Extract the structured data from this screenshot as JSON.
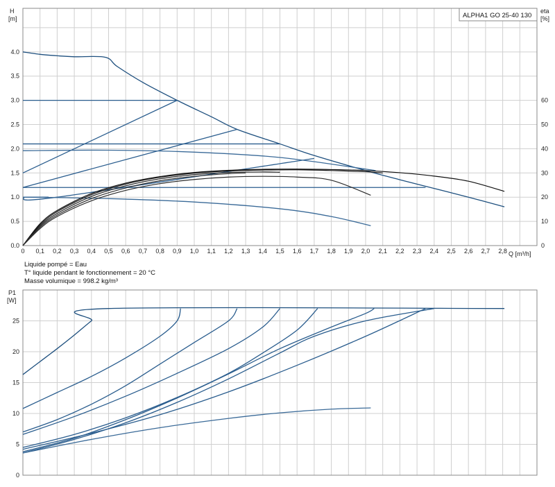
{
  "model_label": "ALPHA1 GO 25-40 130",
  "notes": [
    "Liquide pompé = Eau",
    "T° liquide pendant le fonctionnement = 20 °C",
    "Masse volumique = 998.2 kg/m³"
  ],
  "chart_data": [
    {
      "type": "line",
      "ylabel_line1": "H",
      "ylabel_line2": "[m]",
      "y2label_line1": "eta",
      "y2label_line2": "[%]",
      "xlabel": "Q [m³/h]",
      "xlim": [
        0,
        3.0
      ],
      "ylim": [
        0,
        4.9
      ],
      "y2lim": [
        0,
        98
      ],
      "grid": true,
      "x_ticks": [
        "0",
        "0,1",
        "0,2",
        "0,3",
        "0,4",
        "0,5",
        "0,6",
        "0,7",
        "0,8",
        "0,9",
        "1,0",
        "1,1",
        "1,2",
        "1,3",
        "1,4",
        "1,5",
        "1,6",
        "1,7",
        "1,8",
        "1,9",
        "2,0",
        "2,1",
        "2,2",
        "2,3",
        "2,4",
        "2,5",
        "2,6",
        "2,7",
        "2,8"
      ],
      "y_ticks": [
        "0.0",
        "0.5",
        "1.0",
        "1.5",
        "2.0",
        "2.5",
        "3.0",
        "3.5",
        "4.0"
      ],
      "y2_ticks": [
        "0",
        "10",
        "20",
        "30",
        "40",
        "50",
        "60"
      ],
      "head_series": [
        {
          "color": "#1d4f7e",
          "points": [
            [
              0,
              4.0
            ],
            [
              0.1,
              3.95
            ],
            [
              0.2,
              3.92
            ],
            [
              0.3,
              3.9
            ],
            [
              0.48,
              3.89
            ],
            [
              0.55,
              3.7
            ],
            [
              0.7,
              3.37
            ],
            [
              0.9,
              3.0
            ],
            [
              1.1,
              2.66
            ],
            [
              1.25,
              2.4
            ],
            [
              1.5,
              2.1
            ],
            [
              1.7,
              1.86
            ],
            [
              2.0,
              1.55
            ],
            [
              2.2,
              1.36
            ],
            [
              2.4,
              1.18
            ],
            [
              2.6,
              1.0
            ],
            [
              2.81,
              0.8
            ]
          ]
        },
        {
          "color": "#2a5d8e",
          "points": [
            [
              0,
              3.0
            ],
            [
              0.9,
              3.0
            ]
          ]
        },
        {
          "color": "#2a5d8e",
          "points": [
            [
              0,
              1.5
            ],
            [
              0.9,
              3.0
            ]
          ]
        },
        {
          "color": "#2a5d8e",
          "points": [
            [
              0,
              2.1
            ],
            [
              1.5,
              2.1
            ]
          ]
        },
        {
          "color": "#2a5d8e",
          "points": [
            [
              0,
              1.2
            ],
            [
              1.25,
              2.4
            ]
          ]
        },
        {
          "color": "#2a5d8e",
          "points": [
            [
              0,
              1.2
            ],
            [
              2.35,
              1.2
            ]
          ]
        },
        {
          "color": "#2a5d8e",
          "points": [
            [
              0,
              1.0
            ],
            [
              0.2,
              1.0
            ],
            [
              1.7,
              1.8
            ]
          ]
        },
        {
          "color": "#2a5d8e",
          "points": [
            [
              0,
              1.0
            ],
            [
              0.15,
              1.0
            ]
          ]
        },
        {
          "color": "#3a6a98",
          "points": [
            [
              0,
              1.96
            ],
            [
              0.5,
              1.97
            ],
            [
              1.0,
              1.93
            ],
            [
              1.5,
              1.82
            ],
            [
              2.0,
              1.58
            ],
            [
              2.05,
              1.55
            ]
          ]
        },
        {
          "color": "#3a6a98",
          "points": [
            [
              0,
              1.0
            ],
            [
              0.5,
              0.97
            ],
            [
              1.0,
              0.9
            ],
            [
              1.5,
              0.76
            ],
            [
              1.8,
              0.6
            ],
            [
              2.03,
              0.41
            ]
          ]
        }
      ],
      "eta_series": [
        {
          "color": "#101010",
          "points": [
            [
              0,
              0
            ],
            [
              0.1,
              9
            ],
            [
              0.2,
              14.5
            ],
            [
              0.4,
              21.5
            ],
            [
              0.6,
              25.8
            ],
            [
              0.8,
              28.5
            ],
            [
              1.0,
              30.2
            ],
            [
              1.2,
              31.1
            ],
            [
              1.4,
              31.5
            ],
            [
              1.6,
              31.6
            ],
            [
              1.8,
              31.4
            ],
            [
              2.0,
              31.0
            ],
            [
              2.2,
              30.1
            ],
            [
              2.4,
              28.7
            ],
            [
              2.6,
              26.6
            ],
            [
              2.81,
              22.4
            ]
          ]
        },
        {
          "color": "#1a1a1a",
          "points": [
            [
              0,
              0
            ],
            [
              0.1,
              8.5
            ],
            [
              0.2,
              14
            ],
            [
              0.4,
              21
            ],
            [
              0.6,
              25.4
            ],
            [
              0.8,
              28.2
            ],
            [
              1.0,
              29.9
            ],
            [
              1.2,
              30.8
            ],
            [
              1.4,
              31.2
            ],
            [
              1.6,
              31.3
            ],
            [
              1.8,
              31.0
            ],
            [
              2.0,
              30.5
            ],
            [
              2.1,
              30.0
            ]
          ]
        },
        {
          "color": "#202020",
          "points": [
            [
              0,
              0
            ],
            [
              0.1,
              8
            ],
            [
              0.2,
              13.3
            ],
            [
              0.4,
              20.3
            ],
            [
              0.6,
              24.7
            ],
            [
              0.8,
              27.6
            ],
            [
              1.0,
              29.3
            ],
            [
              1.2,
              30.2
            ],
            [
              1.4,
              30.4
            ],
            [
              1.5,
              30.3
            ]
          ]
        },
        {
          "color": "#2a2a2a",
          "points": [
            [
              0,
              0
            ],
            [
              0.1,
              7
            ],
            [
              0.2,
              12
            ],
            [
              0.4,
              18.5
            ],
            [
              0.6,
              22.8
            ],
            [
              0.8,
              25.6
            ],
            [
              1.0,
              27.3
            ],
            [
              1.2,
              28.3
            ],
            [
              1.4,
              28.6
            ],
            [
              1.6,
              28.3
            ],
            [
              1.8,
              27.0
            ],
            [
              2.03,
              20.8
            ]
          ]
        },
        {
          "color": "#303030",
          "points": [
            [
              0,
              0
            ],
            [
              0.1,
              7.5
            ],
            [
              0.2,
              12.6
            ],
            [
              0.4,
              19.4
            ],
            [
              0.6,
              23.8
            ],
            [
              0.8,
              26.8
            ],
            [
              1.0,
              28.6
            ],
            [
              1.2,
              29.7
            ],
            [
              1.3,
              30.0
            ]
          ]
        }
      ]
    },
    {
      "type": "line",
      "ylabel_line1": "P1",
      "ylabel_line2": "[W]",
      "xlim": [
        0,
        3.0
      ],
      "ylim": [
        0,
        30
      ],
      "grid": true,
      "y_ticks": [
        "0",
        "5",
        "10",
        "15",
        "20",
        "25"
      ],
      "series": [
        {
          "color": "#1d4f7e",
          "points": [
            [
              0,
              16.3
            ],
            [
              0.1,
              18.4
            ],
            [
              0.2,
              20.5
            ],
            [
              0.3,
              22.7
            ],
            [
              0.4,
              25.0
            ],
            [
              0.5,
              27.0
            ],
            [
              2.81,
              27.0
            ]
          ]
        },
        {
          "color": "#2a5d8e",
          "points": [
            [
              0,
              10.8
            ],
            [
              0.2,
              13.4
            ],
            [
              0.4,
              16.0
            ],
            [
              0.6,
              19.0
            ],
            [
              0.8,
              22.5
            ],
            [
              0.9,
              25.0
            ],
            [
              0.92,
              27.0
            ]
          ]
        },
        {
          "color": "#2a5d8e",
          "points": [
            [
              0,
              7.0
            ],
            [
              0.2,
              9.0
            ],
            [
              0.4,
              11.5
            ],
            [
              0.6,
              14.5
            ],
            [
              0.8,
              18.0
            ],
            [
              1.0,
              21.5
            ],
            [
              1.2,
              25.0
            ],
            [
              1.25,
              27.0
            ]
          ]
        },
        {
          "color": "#2a5d8e",
          "points": [
            [
              0,
              6.6
            ],
            [
              0.3,
              9.5
            ],
            [
              0.6,
              12.8
            ],
            [
              0.9,
              16.5
            ],
            [
              1.2,
              20.5
            ],
            [
              1.4,
              24.0
            ],
            [
              1.5,
              27.0
            ]
          ]
        },
        {
          "color": "#2a5d8e",
          "points": [
            [
              0,
              4.5
            ],
            [
              0.3,
              6.6
            ],
            [
              0.6,
              9.3
            ],
            [
              0.9,
              12.6
            ],
            [
              1.2,
              16.5
            ],
            [
              1.4,
              19.8
            ],
            [
              1.6,
              23.5
            ],
            [
              1.72,
              27.0
            ]
          ]
        },
        {
          "color": "#2a5d8e",
          "points": [
            [
              0,
              4.2
            ],
            [
              0.4,
              6.8
            ],
            [
              0.8,
              9.8
            ],
            [
              1.2,
              13.5
            ],
            [
              1.6,
              17.8
            ],
            [
              2.0,
              22.5
            ],
            [
              2.35,
              27.0
            ]
          ]
        },
        {
          "color": "#2a5d8e",
          "points": [
            [
              0,
              3.8
            ],
            [
              0.3,
              6.0
            ],
            [
              0.6,
              9.0
            ],
            [
              0.9,
              12.5
            ],
            [
              1.2,
              16.4
            ],
            [
              1.5,
              20.5
            ],
            [
              1.8,
              24.0
            ],
            [
              2.0,
              26.2
            ],
            [
              2.05,
              27.0
            ]
          ]
        },
        {
          "color": "#2a5d8e",
          "points": [
            [
              0,
              3.6
            ],
            [
              0.3,
              5.8
            ],
            [
              0.6,
              8.5
            ],
            [
              0.9,
              11.8
            ],
            [
              1.2,
              15.6
            ],
            [
              1.5,
              19.8
            ],
            [
              1.7,
              22.5
            ],
            [
              2.0,
              25.0
            ],
            [
              2.4,
              27.0
            ]
          ]
        },
        {
          "color": "#3a6a98",
          "points": [
            [
              0,
              3.6
            ],
            [
              0.4,
              5.8
            ],
            [
              0.8,
              7.7
            ],
            [
              1.2,
              9.2
            ],
            [
              1.5,
              10.1
            ],
            [
              1.8,
              10.7
            ],
            [
              2.03,
              10.9
            ]
          ]
        }
      ]
    }
  ]
}
